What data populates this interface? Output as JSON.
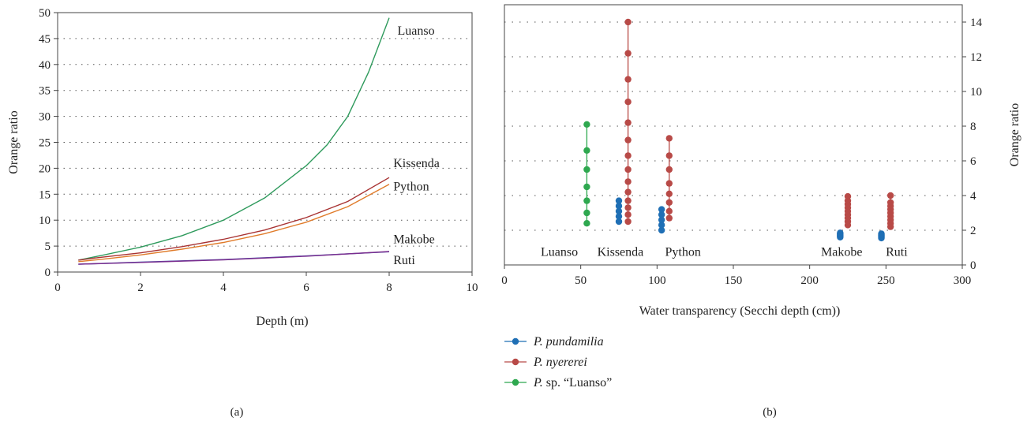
{
  "chart_data": [
    {
      "type": "line",
      "panel_label": "(a)",
      "xlabel": "Depth (m)",
      "ylabel": "Orange ratio",
      "xlim": [
        0,
        10
      ],
      "ylim": [
        0,
        50
      ],
      "xticks": [
        0,
        2,
        4,
        6,
        8,
        10
      ],
      "yticks": [
        0,
        5,
        10,
        15,
        20,
        25,
        30,
        35,
        40,
        45,
        50
      ],
      "grid": "horizontal-dotted",
      "series": [
        {
          "name": "Luanso",
          "color": "#2e9a5c",
          "x": [
            0.5,
            1,
            2,
            3,
            4,
            5,
            6,
            6.5,
            7,
            7.5,
            8
          ],
          "y": [
            2.3,
            3.1,
            4.8,
            7.0,
            10.0,
            14.3,
            20.5,
            24.5,
            30.0,
            38.5,
            49.0
          ]
        },
        {
          "name": "Kissenda",
          "color": "#a83232",
          "x": [
            0.5,
            1,
            2,
            3,
            4,
            5,
            6,
            7,
            8
          ],
          "y": [
            2.3,
            2.8,
            3.7,
            4.9,
            6.3,
            8.1,
            10.5,
            13.6,
            18.2
          ]
        },
        {
          "name": "Python",
          "color": "#e07b2a",
          "x": [
            0.5,
            1,
            2,
            3,
            4,
            5,
            6,
            7,
            8
          ],
          "y": [
            2.0,
            2.4,
            3.3,
            4.4,
            5.7,
            7.4,
            9.6,
            12.6,
            16.9
          ]
        },
        {
          "name": "Makobe",
          "color": "#3a4aa8",
          "x": [
            0.5,
            2,
            4,
            6,
            8
          ],
          "y": [
            1.5,
            1.9,
            2.4,
            3.1,
            3.9
          ]
        },
        {
          "name": "Ruti",
          "color": "#7a2d8e",
          "x": [
            0.5,
            2,
            4,
            6,
            8
          ],
          "y": [
            1.5,
            1.85,
            2.35,
            3.05,
            3.95
          ]
        }
      ],
      "annotations": [
        {
          "text": "Luanso",
          "x": 8.2,
          "y": 46.5
        },
        {
          "text": "Kissenda",
          "x": 8.1,
          "y": 21
        },
        {
          "text": "Python",
          "x": 8.1,
          "y": 16.5
        },
        {
          "text": "Makobe",
          "x": 8.1,
          "y": 6.3
        },
        {
          "text": "Ruti",
          "x": 8.1,
          "y": 2.3
        }
      ]
    },
    {
      "type": "scatter",
      "panel_label": "(b)",
      "xlabel": "Water transparency (Secchi depth (cm))",
      "ylabel": "Orange ratio",
      "xlim": [
        0,
        300
      ],
      "ylim": [
        0,
        15
      ],
      "xticks": [
        0,
        50,
        100,
        150,
        200,
        250,
        300
      ],
      "yticks": [
        0,
        2,
        4,
        6,
        8,
        10,
        12,
        14
      ],
      "y_axis_position": "right",
      "grid": "horizontal-dotted",
      "legend_position": "bottom-left",
      "series": [
        {
          "name": "P. pundamilia",
          "name_prefix": "P.",
          "name_italic": "pundamilia",
          "name_suffix": "",
          "italic": true,
          "color": "#1f6fb5",
          "groups": [
            {
              "x": 75,
              "y": [
                2.5,
                2.8,
                3.1,
                3.4,
                3.7
              ]
            },
            {
              "x": 103,
              "y": [
                2.0,
                2.3,
                2.6,
                2.9,
                3.2
              ]
            },
            {
              "x": 220,
              "y": [
                1.6,
                1.65,
                1.7,
                1.75,
                1.8,
                1.85
              ]
            },
            {
              "x": 247,
              "y": [
                1.55,
                1.6,
                1.65,
                1.7,
                1.75,
                1.8
              ]
            }
          ]
        },
        {
          "name": "P. nyererei",
          "name_prefix": "P.",
          "name_italic": "nyererei",
          "name_suffix": "",
          "italic": true,
          "color": "#b84a47",
          "groups": [
            {
              "x": 81,
              "y": [
                2.5,
                2.9,
                3.3,
                3.7,
                4.2,
                4.8,
                5.5,
                6.3,
                7.2,
                8.2,
                9.4,
                10.7,
                12.2,
                14.0
              ]
            },
            {
              "x": 108,
              "y": [
                2.7,
                3.1,
                3.6,
                4.1,
                4.7,
                5.5,
                6.3,
                7.3
              ]
            },
            {
              "x": 225,
              "y": [
                2.3,
                2.5,
                2.7,
                2.9,
                3.1,
                3.3,
                3.5,
                3.7,
                3.95
              ]
            },
            {
              "x": 253,
              "y": [
                2.2,
                2.4,
                2.6,
                2.8,
                3.0,
                3.2,
                3.4,
                3.6,
                4.0
              ]
            }
          ]
        },
        {
          "name": "P. sp. “Luanso”",
          "name_prefix": "P.",
          "name_italic": "",
          "name_suffix": " sp. “Luanso”",
          "italic": false,
          "color": "#2ea84f",
          "groups": [
            {
              "x": 54,
              "y": [
                2.4,
                3.0,
                3.7,
                4.5,
                5.5,
                6.6,
                8.1
              ]
            }
          ]
        }
      ],
      "annotations": [
        {
          "text": "Luanso",
          "x": 36,
          "y": 0.75
        },
        {
          "text": "Kissenda",
          "x": 76,
          "y": 0.75
        },
        {
          "text": "Python",
          "x": 117,
          "y": 0.75
        },
        {
          "text": "Makobe",
          "x": 221,
          "y": 0.75
        },
        {
          "text": "Ruti",
          "x": 257,
          "y": 0.75
        }
      ]
    }
  ]
}
